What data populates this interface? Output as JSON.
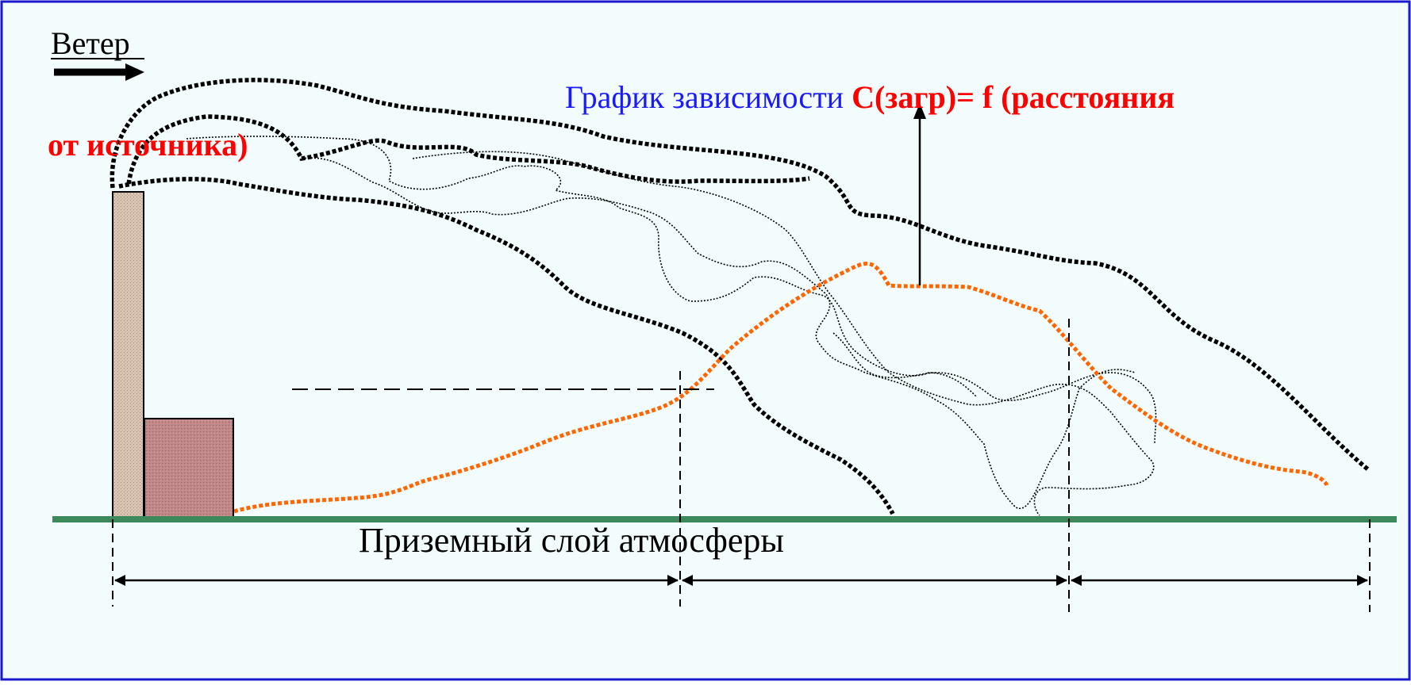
{
  "diagram": {
    "wind_label": "Ветер",
    "chart_label_blue": "График зависимости ",
    "chart_label_red_1": "C(загр)= f (расстояния",
    "chart_label_red_2": "от источника)",
    "ground_label": "Приземный слой атмосферы"
  },
  "colors": {
    "background": "#f2fcfc",
    "frame": "#1a1acc",
    "ground": "#3c8a5c",
    "curve": "#ff6600",
    "label_blue": "#1a1aff",
    "label_red": "#ff0000",
    "chimney_fill": "#d9c4b4",
    "building_fill": "#c08888",
    "plume": "#000000"
  }
}
